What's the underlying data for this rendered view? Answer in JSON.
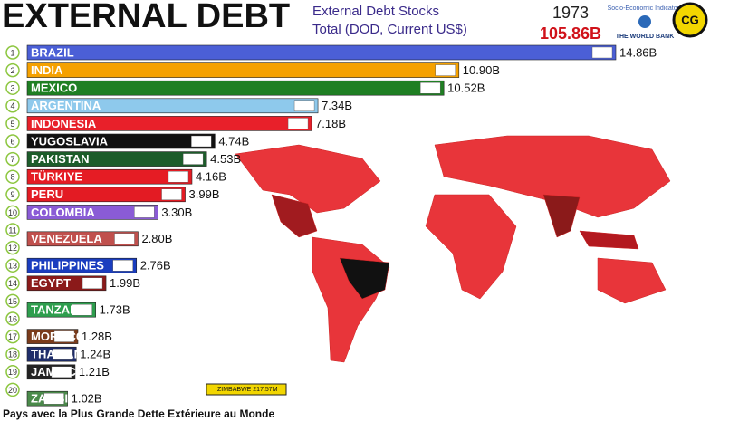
{
  "chart_data": {
    "type": "bar",
    "title": "EXTERNAL DEBT",
    "subtitle": [
      "External Debt Stocks",
      "Total (DOD, Current US$)"
    ],
    "year": "1973",
    "total_label": "105.86B",
    "source": [
      "Socio-Economic Indicators",
      "THE WORLD BANK"
    ],
    "caption": "Pays avec la Plus Grande Dette Extérieure au Monde",
    "annotation": "ZIMBABWE 217.57M",
    "ranks": [
      1,
      2,
      3,
      4,
      5,
      6,
      7,
      8,
      9,
      10,
      11,
      12,
      13,
      14,
      15,
      16,
      17,
      18,
      19,
      20
    ],
    "categories": [
      "BRAZIL",
      "INDIA",
      "MEXICO",
      "ARGENTINA",
      "INDONESIA",
      "YUGOSLAVIA",
      "PAKISTAN",
      "TÜRKIYE",
      "PERU",
      "COLOMBIA",
      "VENEZUELA",
      "PHILIPPINES",
      "EGYPT",
      "TANZANIA",
      "MOROCCO",
      "THAILAND",
      "JAMAICA",
      "ZAMBIA"
    ],
    "slots": [
      1,
      2,
      3,
      4,
      5,
      6,
      7,
      8,
      9,
      10,
      11.5,
      13,
      14,
      15.5,
      17,
      18,
      19,
      20.5
    ],
    "values": [
      14.86,
      10.9,
      10.52,
      7.34,
      7.18,
      4.74,
      4.53,
      4.16,
      3.99,
      3.3,
      2.8,
      2.76,
      1.99,
      1.73,
      1.28,
      1.24,
      1.21,
      1.02
    ],
    "value_labels": [
      "14.86B",
      "10.90B",
      "10.52B",
      "7.34B",
      "7.18B",
      "4.74B",
      "4.53B",
      "4.16B",
      "3.99B",
      "3.30B",
      "2.80B",
      "2.76B",
      "1.99B",
      "1.73B",
      "1.28B",
      "1.24B",
      "1.21B",
      "1.02B"
    ],
    "colors": [
      "#4b5fd6",
      "#f5a100",
      "#1f7f23",
      "#8ec9ec",
      "#e8202a",
      "#111111",
      "#1c5c2a",
      "#e51c24",
      "#e31b23",
      "#8a5bd6",
      "#c0504d",
      "#1a3dbf",
      "#8b1a1a",
      "#2e9e4e",
      "#7a3b1b",
      "#1f2d6b",
      "#222222",
      "#4a8a4a"
    ]
  }
}
